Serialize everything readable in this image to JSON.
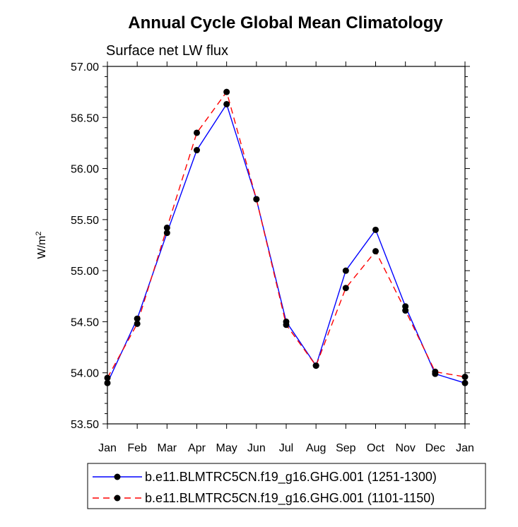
{
  "chart_data": {
    "type": "line",
    "title": "Annual Cycle Global Mean Climatology",
    "subtitle": "Surface net LW flux",
    "ylabel": "W/m",
    "ylabel_superscript": "2",
    "xlabel": "",
    "categories": [
      "Jan",
      "Feb",
      "Mar",
      "Apr",
      "May",
      "Jun",
      "Jul",
      "Aug",
      "Sep",
      "Oct",
      "Nov",
      "Dec",
      "Jan"
    ],
    "ylim": [
      53.5,
      57.0
    ],
    "yticks": [
      53.5,
      54.0,
      54.5,
      55.0,
      55.5,
      56.0,
      56.5,
      57.0
    ],
    "ytick_labels": [
      "53.50",
      "54.00",
      "54.50",
      "55.00",
      "55.50",
      "56.00",
      "56.50",
      "57.00"
    ],
    "minor_ytick_step": 0.1,
    "grid": false,
    "legend_position": "bottom",
    "series": [
      {
        "name": "b.e11.BLMTRC5CN.f19_g16.GHG.001 (1251-1300)",
        "color": "#0000ff",
        "dash": "solid",
        "marker": "circle",
        "marker_color": "#000000",
        "values": [
          53.9,
          54.53,
          55.37,
          56.18,
          56.63,
          55.7,
          54.5,
          54.07,
          55.0,
          55.4,
          54.65,
          53.99,
          53.9
        ]
      },
      {
        "name": "b.e11.BLMTRC5CN.f19_g16.GHG.001 (1101-1150)",
        "color": "#ff0000",
        "dash": "dashed",
        "marker": "circle",
        "marker_color": "#000000",
        "values": [
          53.95,
          54.48,
          55.42,
          56.35,
          56.75,
          55.7,
          54.47,
          54.07,
          54.83,
          55.19,
          54.61,
          54.01,
          53.96
        ]
      }
    ]
  }
}
